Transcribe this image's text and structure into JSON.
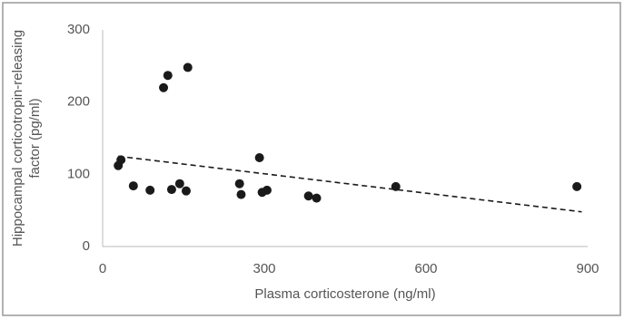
{
  "chart_data": {
    "type": "scatter",
    "x_label": "Plasma corticosterone (ng/ml)",
    "y_label": [
      "Hippocampal corticotropin-releasing",
      "factor (pg/ml)"
    ],
    "series": [
      {
        "color": "#1a1a1a",
        "x": [
          29,
          34,
          57,
          88,
          113,
          121,
          128,
          143,
          155,
          158,
          254,
          257,
          291,
          296,
          305,
          382,
          397,
          544,
          880
        ],
        "values": [
          112,
          120,
          84,
          78,
          220,
          237,
          79,
          87,
          77,
          248,
          87,
          72,
          123,
          75,
          78,
          70,
          67,
          83,
          83
        ]
      }
    ],
    "trendline": {
      "color": "#1a1a1a",
      "x": [
        29,
        889
      ],
      "values": [
        125,
        48
      ]
    },
    "xlim": [
      0,
      900
    ],
    "xticks": [
      0,
      300,
      600,
      900
    ],
    "ylim": [
      0,
      300
    ],
    "yticks": [
      0,
      100,
      200,
      300
    ],
    "grid": false
  }
}
